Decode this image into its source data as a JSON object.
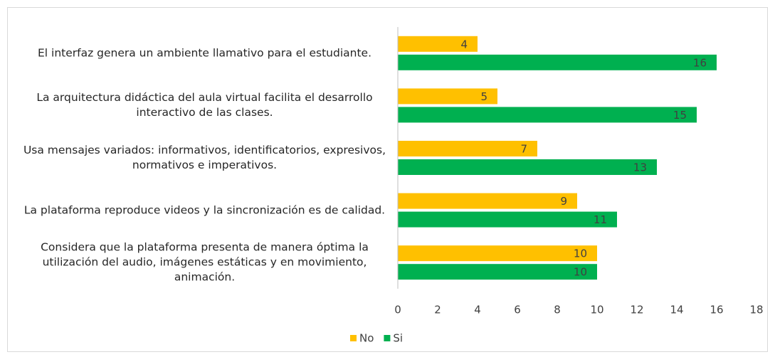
{
  "chart_data": {
    "type": "bar",
    "orientation": "horizontal",
    "categories": [
      "El interfaz genera un ambiente llamativo para el estudiante.",
      "La arquitectura didáctica del aula virtual facilita el desarrollo interactivo de las clases.",
      "Usa mensajes variados: informativos, identificatorios, expresivos, normativos e imperativos.",
      "La plataforma reproduce videos y la sincronización es de calidad.",
      "Considera que la plataforma presenta de manera óptima la utilización del audio, imágenes estáticas y en movimiento, animación."
    ],
    "series": [
      {
        "name": "No",
        "color": "#ffc000",
        "values": [
          4,
          5,
          7,
          9,
          10
        ]
      },
      {
        "name": "Si",
        "color": "#00b050",
        "values": [
          16,
          15,
          13,
          11,
          10
        ]
      }
    ],
    "xlim": [
      0,
      18
    ],
    "xticks": [
      0,
      2,
      4,
      6,
      8,
      10,
      12,
      14,
      16,
      18
    ],
    "legend": "bottom",
    "grid": false
  }
}
